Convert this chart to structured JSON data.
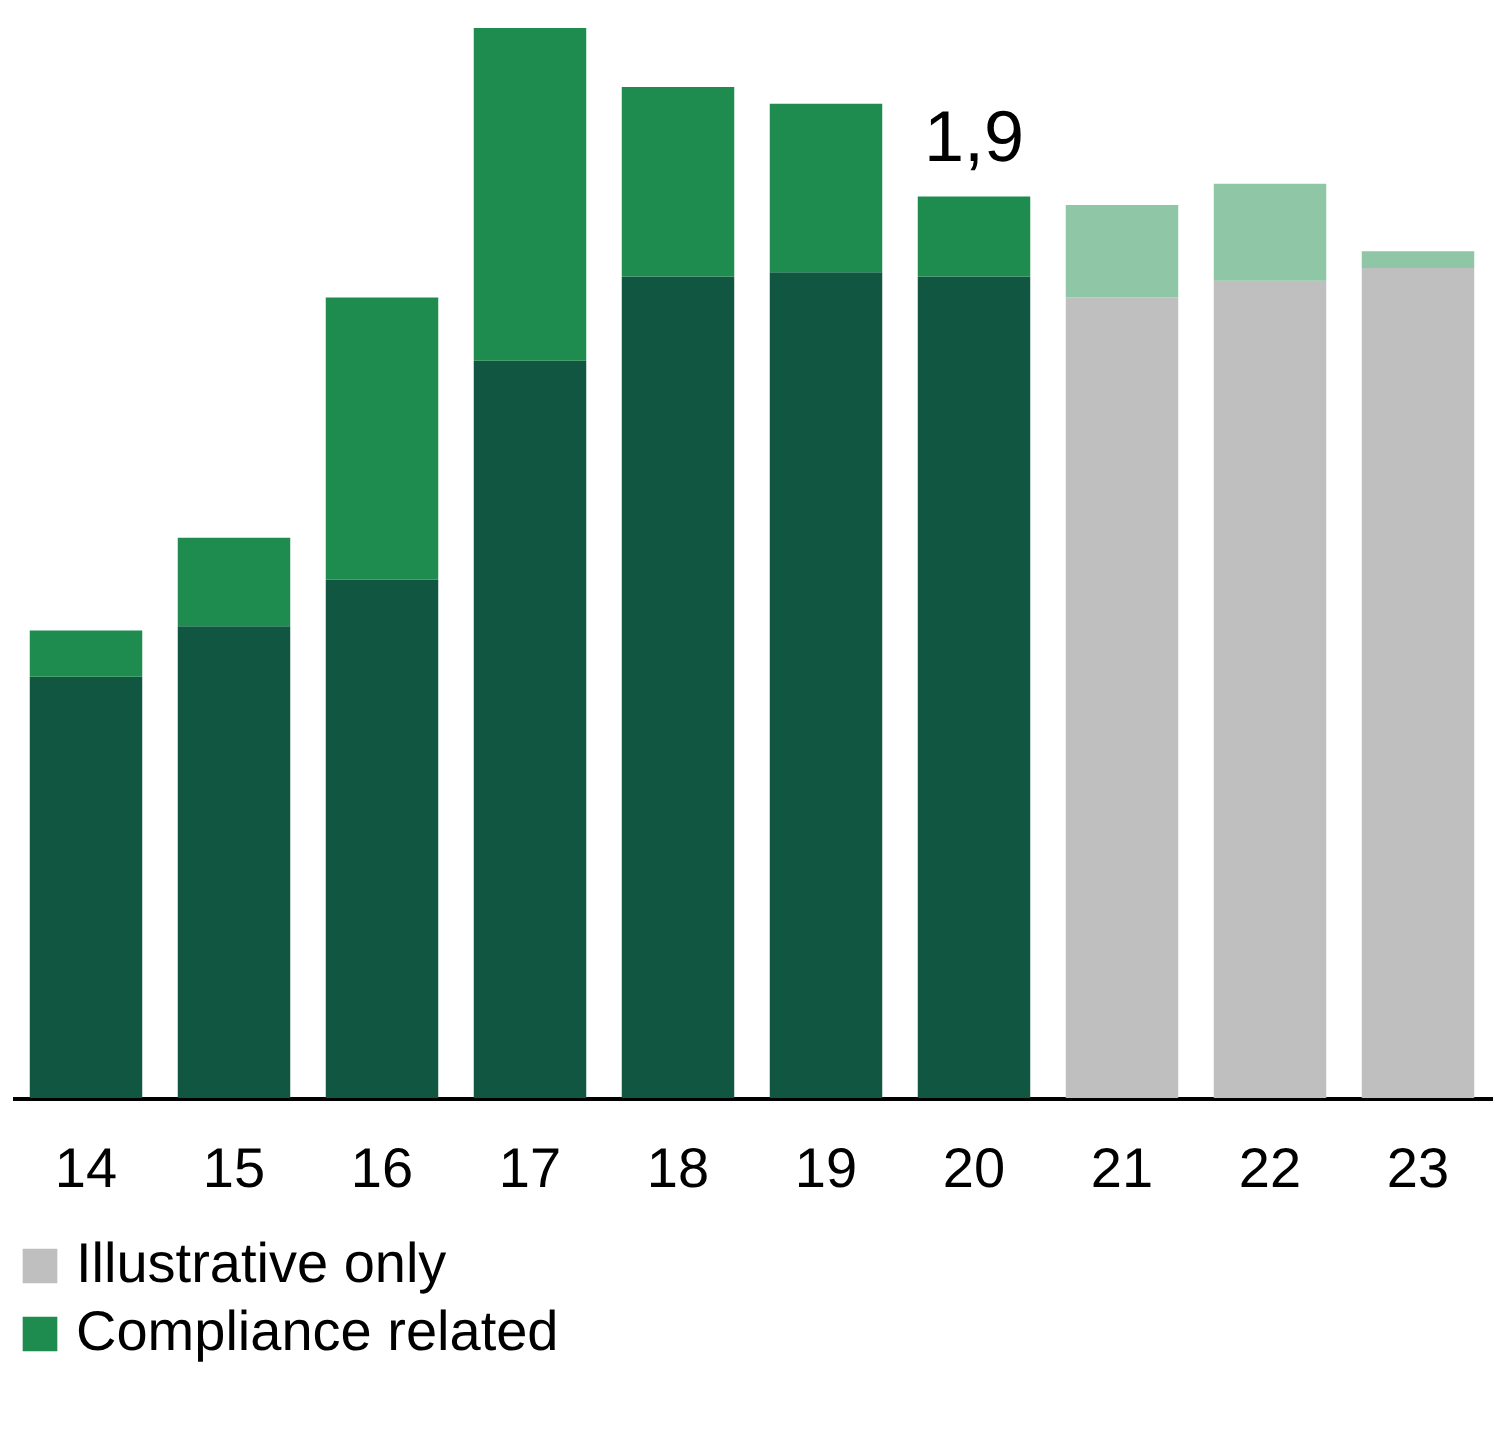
{
  "chart_data": {
    "type": "bar",
    "stacked": true,
    "categories": [
      "14",
      "15",
      "16",
      "17",
      "18",
      "19",
      "20",
      "21",
      "22",
      "23"
    ],
    "series": [
      {
        "color": "#115640",
        "values": [
          10.0,
          11.2,
          12.3,
          17.5,
          19.5,
          19.6,
          19.5,
          null,
          null,
          null
        ]
      },
      {
        "name": "Illustrative only",
        "color": "#bfbfbf",
        "values": [
          null,
          null,
          null,
          null,
          null,
          null,
          null,
          19.0,
          19.4,
          19.7
        ]
      },
      {
        "name": "Compliance related",
        "color": "#1f8c4f",
        "values": [
          1.1,
          2.1,
          6.7,
          7.9,
          4.5,
          4.0,
          1.9,
          null,
          null,
          null
        ],
        "value_labels": [
          null,
          null,
          null,
          null,
          null,
          null,
          "1,9",
          null,
          null,
          null
        ]
      },
      {
        "color": "#8fc6a5",
        "values": [
          null,
          null,
          null,
          null,
          null,
          null,
          null,
          2.2,
          2.3,
          0.4
        ]
      }
    ],
    "legend": "bottom"
  }
}
